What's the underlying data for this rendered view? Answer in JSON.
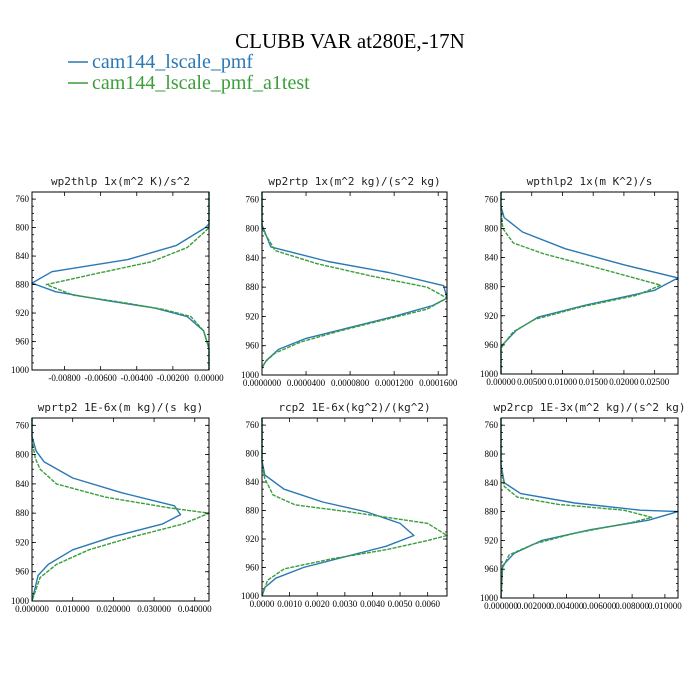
{
  "figure": {
    "title": "CLUBB VAR at280E,-17N",
    "legend": [
      {
        "name": "cam144_lscale_pmf",
        "color": "#2a78b4"
      },
      {
        "name": "cam144_lscale_pmf_a1test",
        "color": "#3a9e3a"
      }
    ]
  },
  "chart_data": [
    {
      "type": "line",
      "title": "wp2thlp 1x(m^2 K)/s^2",
      "xlim": [
        -0.0098,
        0.0
      ],
      "xticks": [
        -0.008,
        -0.006,
        -0.004,
        -0.002,
        0.0
      ],
      "xtick_labels": [
        "-0.00800",
        "-0.00600",
        "-0.00400",
        "-0.00200",
        "0.00000"
      ],
      "ylim": [
        750,
        1000
      ],
      "yticks": [
        760,
        800,
        840,
        880,
        920,
        960,
        1000
      ],
      "ytick_labels": [
        "760",
        "800",
        "840",
        "880",
        "920",
        "960",
        "1000"
      ],
      "series": [
        {
          "name": "cam144_lscale_pmf",
          "x": [
            0,
            0,
            -0.0002,
            -0.0018,
            -0.0045,
            -0.0087,
            -0.0098,
            -0.0085,
            -0.0058,
            -0.003,
            -0.0012,
            -0.0003,
            0,
            0
          ],
          "y": [
            750,
            795,
            800,
            825,
            845,
            862,
            878,
            890,
            902,
            913,
            925,
            945,
            970,
            1000
          ]
        },
        {
          "name": "cam144_lscale_pmf_a1test",
          "x": [
            0,
            0,
            -0.0002,
            -0.0012,
            -0.0032,
            -0.0065,
            -0.009,
            -0.0075,
            -0.0048,
            -0.0025,
            -0.001,
            -0.0003,
            0,
            0
          ],
          "y": [
            750,
            800,
            805,
            828,
            848,
            866,
            880,
            895,
            905,
            915,
            925,
            945,
            970,
            1000
          ]
        }
      ]
    },
    {
      "type": "line",
      "title": "wp2rtp 1x(m^2 kg)/(s^2 kg)",
      "xlim": [
        0.0,
        0.000168
      ],
      "xticks": [
        0.0,
        4e-05,
        8e-05,
        0.00012,
        0.00016
      ],
      "xtick_labels": [
        "0.0000000",
        "0.0000400",
        "0.0000800",
        "0.0001200",
        "0.0001600"
      ],
      "ylim": [
        750,
        1000
      ],
      "yticks": [
        760,
        800,
        840,
        880,
        920,
        960,
        1000
      ],
      "ytick_labels": [
        "760",
        "800",
        "840",
        "880",
        "920",
        "960",
        "1000"
      ],
      "series": [
        {
          "name": "cam144_lscale_pmf",
          "x": [
            0,
            0,
            8e-06,
            6e-05,
            0.000115,
            0.000165,
            0.000168,
            0.000155,
            0.00012,
            8e-05,
            4e-05,
            1.5e-05,
            4e-06,
            0
          ],
          "y": [
            750,
            795,
            825,
            845,
            860,
            878,
            895,
            905,
            920,
            935,
            950,
            965,
            980,
            990
          ]
        },
        {
          "name": "cam144_lscale_pmf_a1test",
          "x": [
            0,
            0,
            1.2e-05,
            5e-05,
            0.0001,
            0.00015,
            0.000168,
            0.00015,
            0.00011,
            7e-05,
            3.5e-05,
            1.2e-05,
            3e-06,
            0
          ],
          "y": [
            750,
            800,
            830,
            848,
            865,
            880,
            895,
            910,
            925,
            940,
            955,
            970,
            982,
            990
          ]
        }
      ]
    },
    {
      "type": "line",
      "title": "wpthlp2 1x(m K^2)/s",
      "xlim": [
        0.0,
        0.0288
      ],
      "xticks": [
        0.0,
        0.005,
        0.01,
        0.015,
        0.02,
        0.025
      ],
      "xtick_labels": [
        "0.00000",
        "0.00500",
        "0.01000",
        "0.01500",
        "0.02000",
        "0.02500"
      ],
      "ylim": [
        750,
        1000
      ],
      "yticks": [
        760,
        800,
        840,
        880,
        920,
        960,
        1000
      ],
      "ytick_labels": [
        "760",
        "800",
        "840",
        "880",
        "920",
        "960",
        "1000"
      ],
      "series": [
        {
          "name": "cam144_lscale_pmf",
          "x": [
            0,
            0,
            0.0005,
            0.0035,
            0.0105,
            0.02,
            0.0288,
            0.025,
            0.014,
            0.006,
            0.0025,
            0.0008,
            0,
            0
          ],
          "y": [
            750,
            770,
            785,
            805,
            828,
            850,
            868,
            885,
            905,
            922,
            940,
            955,
            962,
            1000
          ]
        },
        {
          "name": "cam144_lscale_pmf_a1test",
          "x": [
            0,
            0,
            0.0003,
            0.002,
            0.007,
            0.016,
            0.026,
            0.022,
            0.013,
            0.0055,
            0.002,
            0.0006,
            0,
            0
          ],
          "y": [
            750,
            775,
            800,
            820,
            835,
            855,
            878,
            892,
            908,
            925,
            942,
            957,
            965,
            1000
          ]
        }
      ]
    },
    {
      "type": "line",
      "title": "wprtp2 1E-6x(m kg)/(s kg)",
      "xlim": [
        0.0,
        0.0435
      ],
      "xticks": [
        0.0,
        0.01,
        0.02,
        0.03,
        0.04
      ],
      "xtick_labels": [
        "0.000000",
        "0.010000",
        "0.020000",
        "0.030000",
        "0.040000"
      ],
      "ylim": [
        750,
        1000
      ],
      "yticks": [
        760,
        800,
        840,
        880,
        920,
        960,
        1000
      ],
      "ytick_labels": [
        "760",
        "800",
        "840",
        "880",
        "920",
        "960",
        "1000"
      ],
      "series": [
        {
          "name": "cam144_lscale_pmf",
          "x": [
            0,
            0,
            0.001,
            0.003,
            0.01,
            0.022,
            0.035,
            0.0365,
            0.032,
            0.02,
            0.01,
            0.004,
            0.0015,
            0
          ],
          "y": [
            750,
            775,
            795,
            810,
            832,
            852,
            870,
            882,
            895,
            912,
            930,
            950,
            965,
            1000
          ]
        },
        {
          "name": "cam144_lscale_pmf_a1test",
          "x": [
            0,
            0,
            0.0008,
            0.002,
            0.006,
            0.018,
            0.034,
            0.0435,
            0.037,
            0.025,
            0.014,
            0.006,
            0.002,
            0
          ],
          "y": [
            750,
            780,
            805,
            820,
            840,
            858,
            873,
            880,
            895,
            912,
            930,
            950,
            968,
            1000
          ]
        }
      ]
    },
    {
      "type": "line",
      "title": "rcp2 1E-6x(kg^2)/(kg^2)",
      "xlim": [
        0.0,
        0.0067
      ],
      "xticks": [
        0.0,
        0.001,
        0.002,
        0.003,
        0.004,
        0.005,
        0.006
      ],
      "xtick_labels": [
        "0.0000",
        "0.0010",
        "0.0020",
        "0.0030",
        "0.0040",
        "0.0050",
        "0.0060"
      ],
      "ylim": [
        750,
        1000
      ],
      "yticks": [
        760,
        800,
        840,
        880,
        920,
        960,
        1000
      ],
      "ytick_labels": [
        "760",
        "800",
        "840",
        "880",
        "920",
        "960",
        "1000"
      ],
      "series": [
        {
          "name": "cam144_lscale_pmf",
          "x": [
            0,
            0,
            0.0001,
            0.0008,
            0.0022,
            0.0038,
            0.005,
            0.0055,
            0.0045,
            0.003,
            0.0015,
            0.0005,
            0.0001,
            0
          ],
          "y": [
            750,
            810,
            830,
            850,
            868,
            882,
            898,
            915,
            930,
            945,
            960,
            975,
            988,
            1000
          ]
        },
        {
          "name": "cam144_lscale_pmf_a1test",
          "x": [
            0,
            0,
            0.0001,
            0.0004,
            0.0012,
            0.0032,
            0.006,
            0.0067,
            0.006,
            0.0045,
            0.0025,
            0.0008,
            0.0002,
            0
          ],
          "y": [
            750,
            815,
            835,
            858,
            872,
            882,
            898,
            915,
            922,
            935,
            948,
            962,
            978,
            1000
          ]
        }
      ]
    },
    {
      "type": "line",
      "title": "wp2rcp 1E-3x(m^2 kg)/(s^2 kg)",
      "xlim": [
        0.0,
        0.0108
      ],
      "xticks": [
        0.0,
        0.002,
        0.004,
        0.006,
        0.008,
        0.01
      ],
      "xtick_labels": [
        "0.000000",
        "0.002000",
        "0.004000",
        "0.006000",
        "0.008000",
        "0.010000"
      ],
      "ylim": [
        750,
        1000
      ],
      "yticks": [
        760,
        800,
        840,
        880,
        920,
        960,
        1000
      ],
      "ytick_labels": [
        "760",
        "800",
        "840",
        "880",
        "920",
        "960",
        "1000"
      ],
      "series": [
        {
          "name": "cam144_lscale_pmf",
          "x": [
            0,
            0,
            0.0002,
            0.0012,
            0.0045,
            0.0085,
            0.0108,
            0.009,
            0.0055,
            0.0025,
            0.0008,
            0.0001,
            0
          ],
          "y": [
            750,
            815,
            840,
            855,
            868,
            878,
            880,
            892,
            905,
            920,
            938,
            955,
            1000
          ]
        },
        {
          "name": "cam144_lscale_pmf_a1test",
          "x": [
            0,
            0,
            0.0002,
            0.001,
            0.0035,
            0.0075,
            0.0092,
            0.008,
            0.0045,
            0.002,
            0.0005,
            0.0001,
            0
          ],
          "y": [
            750,
            820,
            845,
            860,
            870,
            878,
            888,
            895,
            910,
            925,
            940,
            958,
            1000
          ]
        }
      ]
    }
  ]
}
